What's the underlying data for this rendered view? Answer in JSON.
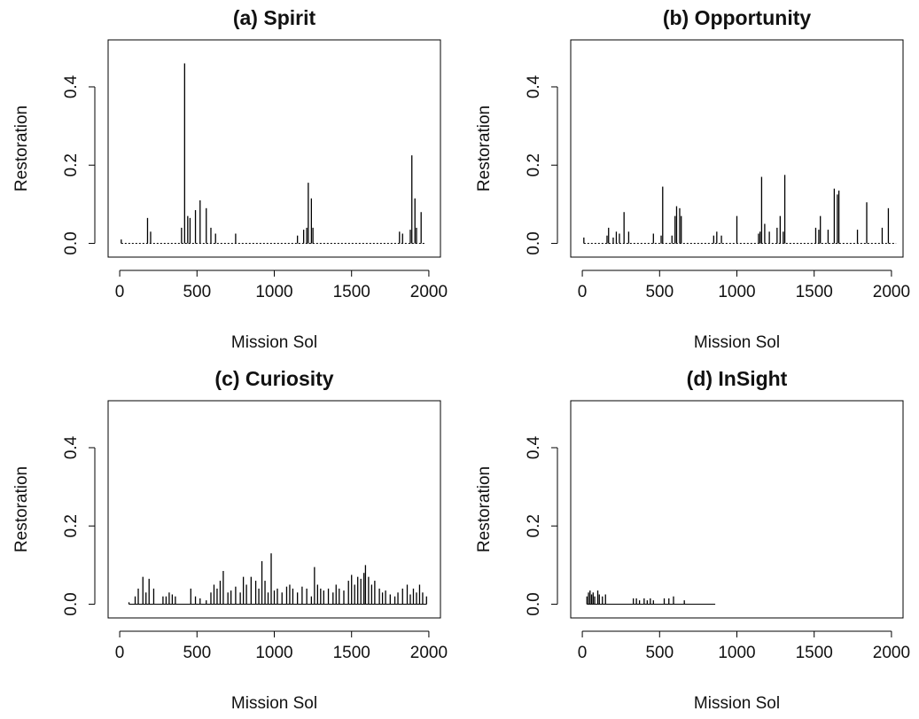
{
  "chart_data": [
    {
      "type": "spike",
      "title": "(a) Spirit",
      "x_label": "Mission Sol",
      "y_label": "Restoration",
      "color": "#000000",
      "baseline": "dotted",
      "xlim": [
        -75,
        2075
      ],
      "ylim": [
        -0.035,
        0.52
      ],
      "xticks": [
        0,
        500,
        1000,
        1500,
        2000
      ],
      "yticks": [
        {
          "value": 0,
          "label": "0.0"
        },
        0.2,
        0.4
      ],
      "x": [
        10,
        50,
        180,
        200,
        400,
        420,
        440,
        455,
        490,
        520,
        560,
        590,
        620,
        750,
        1150,
        1190,
        1210,
        1220,
        1240,
        1250,
        1810,
        1830,
        1880,
        1890,
        1910,
        1920,
        1950,
        1980
      ],
      "values": [
        0.01,
        0,
        0.065,
        0.03,
        0.04,
        0.46,
        0.07,
        0.065,
        0.085,
        0.11,
        0.09,
        0.04,
        0.025,
        0.025,
        0.02,
        0.035,
        0.04,
        0.155,
        0.115,
        0.04,
        0.03,
        0.025,
        0.035,
        0.225,
        0.115,
        0.04,
        0.08,
        0
      ]
    },
    {
      "type": "spike",
      "title": "(b) Opportunity",
      "x_label": "Mission Sol",
      "y_label": "Restoration",
      "color": "#000000",
      "baseline": "dotted",
      "xlim": [
        -75,
        2075
      ],
      "ylim": [
        -0.035,
        0.52
      ],
      "xticks": [
        0,
        500,
        1000,
        1500,
        2000
      ],
      "yticks": [
        {
          "value": 0,
          "label": "0.0"
        },
        0.2,
        0.4
      ],
      "x": [
        10,
        160,
        170,
        200,
        220,
        240,
        270,
        300,
        460,
        510,
        520,
        580,
        600,
        610,
        630,
        640,
        850,
        870,
        900,
        1000,
        1140,
        1150,
        1160,
        1180,
        1210,
        1260,
        1280,
        1300,
        1310,
        1510,
        1530,
        1540,
        1590,
        1630,
        1650,
        1660,
        1780,
        1840,
        1940,
        1980,
        2030
      ],
      "values": [
        0.015,
        0.02,
        0.04,
        0.015,
        0.03,
        0.025,
        0.08,
        0.03,
        0.025,
        0.02,
        0.145,
        0.02,
        0.07,
        0.095,
        0.09,
        0.07,
        0.02,
        0.03,
        0.02,
        0.07,
        0.025,
        0.03,
        0.17,
        0.05,
        0.03,
        0.04,
        0.07,
        0.03,
        0.175,
        0.04,
        0.035,
        0.07,
        0.035,
        0.14,
        0.125,
        0.135,
        0.035,
        0.105,
        0.04,
        0.09,
        0
      ]
    },
    {
      "type": "spike",
      "title": "(c) Curiosity",
      "x_label": "Mission Sol",
      "y_label": "Restoration",
      "color": "#000000",
      "baseline": "solid",
      "xlim": [
        -75,
        2075
      ],
      "ylim": [
        -0.035,
        0.52
      ],
      "xticks": [
        0,
        500,
        1000,
        1500,
        2000
      ],
      "yticks": [
        {
          "value": 0,
          "label": "0.0"
        },
        0.2,
        0.4
      ],
      "x": [
        60,
        100,
        120,
        150,
        170,
        190,
        220,
        280,
        300,
        320,
        340,
        360,
        460,
        490,
        520,
        560,
        590,
        610,
        630,
        650,
        670,
        700,
        720,
        750,
        780,
        800,
        820,
        850,
        880,
        900,
        920,
        940,
        960,
        980,
        1000,
        1020,
        1050,
        1080,
        1100,
        1120,
        1150,
        1180,
        1210,
        1240,
        1260,
        1280,
        1300,
        1320,
        1350,
        1380,
        1400,
        1420,
        1450,
        1480,
        1500,
        1520,
        1540,
        1560,
        1580,
        1590,
        1610,
        1630,
        1650,
        1680,
        1700,
        1720,
        1750,
        1780,
        1800,
        1830,
        1860,
        1880,
        1900,
        1920,
        1940,
        1960,
        1985
      ],
      "values": [
        0.005,
        0.02,
        0.04,
        0.07,
        0.03,
        0.065,
        0.04,
        0.02,
        0.02,
        0.03,
        0.025,
        0.02,
        0.04,
        0.02,
        0.015,
        0.01,
        0.03,
        0.05,
        0.04,
        0.06,
        0.085,
        0.03,
        0.035,
        0.045,
        0.03,
        0.07,
        0.05,
        0.07,
        0.06,
        0.04,
        0.11,
        0.06,
        0.03,
        0.13,
        0.035,
        0.04,
        0.03,
        0.045,
        0.05,
        0.04,
        0.03,
        0.045,
        0.04,
        0.02,
        0.095,
        0.05,
        0.04,
        0.035,
        0.04,
        0.03,
        0.05,
        0.04,
        0.035,
        0.06,
        0.075,
        0.05,
        0.07,
        0.065,
        0.08,
        0.1,
        0.07,
        0.05,
        0.06,
        0.04,
        0.03,
        0.035,
        0.025,
        0.02,
        0.03,
        0.04,
        0.05,
        0.025,
        0.04,
        0.03,
        0.05,
        0.03,
        0.02
      ]
    },
    {
      "type": "spike",
      "title": "(d) InSight",
      "x_label": "Mission Sol",
      "y_label": "Restoration",
      "color": "#000000",
      "baseline": "solid",
      "xlim": [
        -75,
        2075
      ],
      "ylim": [
        -0.035,
        0.52
      ],
      "xticks": [
        0,
        500,
        1000,
        1500,
        2000
      ],
      "yticks": [
        {
          "value": 0,
          "label": "0.0"
        },
        0.2,
        0.4
      ],
      "x": [
        30,
        40,
        50,
        60,
        70,
        80,
        100,
        110,
        130,
        150,
        330,
        350,
        370,
        400,
        420,
        440,
        460,
        530,
        560,
        590,
        660,
        860
      ],
      "values": [
        0.02,
        0.03,
        0.035,
        0.025,
        0.03,
        0.02,
        0.035,
        0.025,
        0.02,
        0.025,
        0.015,
        0.015,
        0.01,
        0.015,
        0.01,
        0.015,
        0.01,
        0.015,
        0.015,
        0.02,
        0.01,
        0
      ]
    }
  ]
}
